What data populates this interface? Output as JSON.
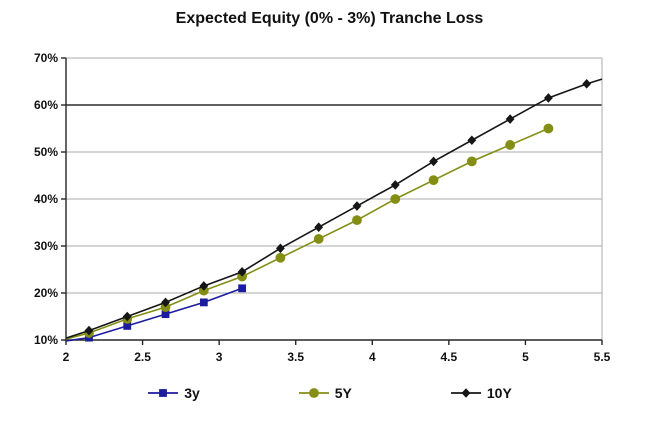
{
  "chart_data": {
    "type": "line",
    "title": "Expected Equity (0% - 3%) Tranche Loss",
    "xlabel": "",
    "ylabel": "",
    "xlim": [
      2,
      5.5
    ],
    "ylim": [
      10,
      70
    ],
    "x_ticks": [
      2,
      2.5,
      3,
      3.5,
      4,
      4.5,
      5,
      5.5
    ],
    "x_tick_labels": [
      "2",
      "2.5",
      "3",
      "3.5",
      "4",
      "4.5",
      "5",
      "5.5"
    ],
    "y_ticks": [
      10,
      20,
      30,
      40,
      50,
      60,
      70
    ],
    "y_tick_labels": [
      "10%",
      "20%",
      "30%",
      "40%",
      "50%",
      "60%",
      "70%"
    ],
    "grid": "horizontal",
    "highlighted_gridline": 60,
    "legend_position": "bottom",
    "series": [
      {
        "name": "3y",
        "marker": "square",
        "color": "#1C1C9E",
        "line_start": {
          "x": 2.0,
          "y": 9.8
        },
        "x": [
          2.15,
          2.4,
          2.65,
          2.9,
          3.15
        ],
        "y": [
          10.5,
          13,
          15.5,
          18,
          21
        ]
      },
      {
        "name": "5Y",
        "marker": "circle",
        "color": "#848E14",
        "line_start": {
          "x": 2.0,
          "y": 10.2
        },
        "x": [
          2.15,
          2.4,
          2.65,
          2.9,
          3.15,
          3.4,
          3.65,
          3.9,
          4.15,
          4.4,
          4.65,
          4.9,
          5.15
        ],
        "y": [
          11.5,
          14.5,
          17,
          20.5,
          23.5,
          27.5,
          31.5,
          35.5,
          40,
          44,
          48,
          51.5,
          55
        ]
      },
      {
        "name": "10Y",
        "marker": "diamond",
        "color": "#161616",
        "line_start": {
          "x": 2.0,
          "y": 10.4
        },
        "line_end": {
          "x": 5.5,
          "y": 65.5
        },
        "x": [
          2.15,
          2.4,
          2.65,
          2.9,
          3.15,
          3.4,
          3.65,
          3.9,
          4.15,
          4.4,
          4.65,
          4.9,
          5.15,
          5.4
        ],
        "y": [
          12,
          15,
          18,
          21.5,
          24.5,
          29.5,
          34,
          38.5,
          43,
          48,
          52.5,
          57,
          61.5,
          64.5
        ]
      }
    ]
  },
  "legend": {
    "items": [
      {
        "label": "3y"
      },
      {
        "label": "5Y"
      },
      {
        "label": "10Y"
      }
    ]
  },
  "colors": {
    "series_3y": "#1C1C9E",
    "series_5y": "#848E14",
    "series_10y": "#161616",
    "gridline": "#ABABAB",
    "gridline_dark": "#2B2B2B",
    "axis": "#262626",
    "background": "#FFFFFF",
    "text": "#111111"
  }
}
